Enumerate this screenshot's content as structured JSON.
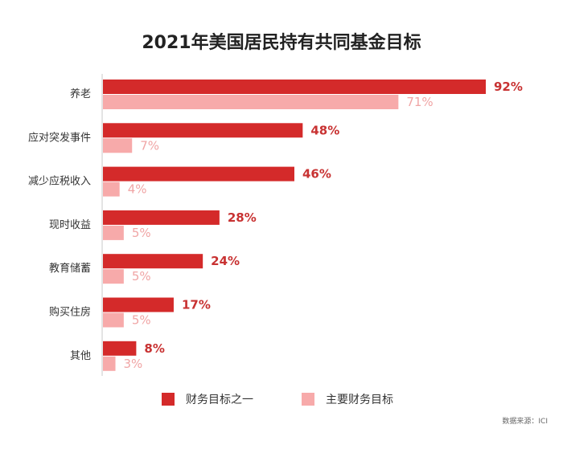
{
  "chart_data": {
    "type": "bar",
    "orientation": "horizontal",
    "title": "2021年美国居民持有共同基金目标",
    "categories": [
      "养老",
      "应对突发事件",
      "减少应税收入",
      "现时收益",
      "教育储蓄",
      "购买住房",
      "其他"
    ],
    "series": [
      {
        "name": "财务目标之一",
        "values": [
          92,
          48,
          46,
          28,
          24,
          17,
          8
        ],
        "labels": [
          "92%",
          "48%",
          "46%",
          "28%",
          "24%",
          "17%",
          "8%"
        ],
        "color": "#d42a2a"
      },
      {
        "name": "主要财务目标",
        "values": [
          71,
          7,
          4,
          5,
          5,
          5,
          3
        ],
        "labels": [
          "71%",
          "7%",
          "4%",
          "5%",
          "5%",
          "5%",
          "3%"
        ],
        "color": "#f7aaaa"
      }
    ],
    "xlim": [
      0,
      100
    ],
    "grid": false,
    "legend": "bottom",
    "unit": "%",
    "label_colors": [
      "#c83232",
      "#f0a5a5"
    ]
  },
  "source": "数据来源：ICI"
}
